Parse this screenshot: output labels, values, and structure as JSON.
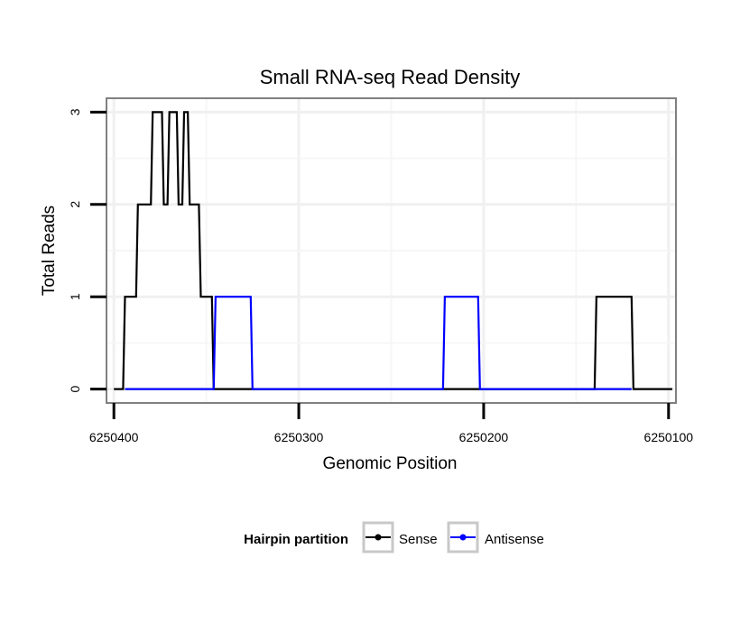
{
  "chart_data": {
    "type": "line",
    "title": "Small RNA-seq Read Density",
    "xlabel": "Genomic Position",
    "ylabel": "Total Reads",
    "xlim": [
      6250404,
      6250096
    ],
    "x_reversed": true,
    "ylim": [
      -0.15,
      3.15
    ],
    "x_ticks": [
      6250400,
      6250300,
      6250200,
      6250100
    ],
    "x_tick_labels": [
      "6250400",
      "6250300",
      "6250200",
      "6250100"
    ],
    "y_ticks": [
      0,
      1,
      2,
      3
    ],
    "y_tick_labels": [
      "0",
      "1",
      "2",
      "3"
    ],
    "grid": true,
    "legend": {
      "title": "Hairpin partition",
      "position": "bottom",
      "entries": [
        "Sense",
        "Antisense"
      ]
    },
    "series": [
      {
        "name": "Sense",
        "color": "#000000",
        "points": [
          [
            6250400,
            0
          ],
          [
            6250395,
            0
          ],
          [
            6250394,
            1
          ],
          [
            6250388,
            1
          ],
          [
            6250387,
            2
          ],
          [
            6250380,
            2
          ],
          [
            6250379,
            3
          ],
          [
            6250374,
            3
          ],
          [
            6250373,
            2
          ],
          [
            6250371,
            2
          ],
          [
            6250370,
            3
          ],
          [
            6250366,
            3
          ],
          [
            6250365,
            2
          ],
          [
            6250363,
            2
          ],
          [
            6250362,
            3
          ],
          [
            6250360,
            3
          ],
          [
            6250359,
            2
          ],
          [
            6250354,
            2
          ],
          [
            6250353,
            1
          ],
          [
            6250347,
            1
          ],
          [
            6250346,
            0
          ],
          [
            6250140,
            0
          ],
          [
            6250139,
            1
          ],
          [
            6250120,
            1
          ],
          [
            6250119,
            0
          ],
          [
            6250098,
            0
          ]
        ]
      },
      {
        "name": "Antisense",
        "color": "#0000ff",
        "points": [
          [
            6250394,
            0
          ],
          [
            6250346,
            0
          ],
          [
            6250345,
            1
          ],
          [
            6250326,
            1
          ],
          [
            6250325,
            0
          ],
          [
            6250222,
            0
          ],
          [
            6250221,
            1
          ],
          [
            6250203,
            1
          ],
          [
            6250202,
            0
          ],
          [
            6250120,
            0
          ]
        ]
      }
    ]
  }
}
